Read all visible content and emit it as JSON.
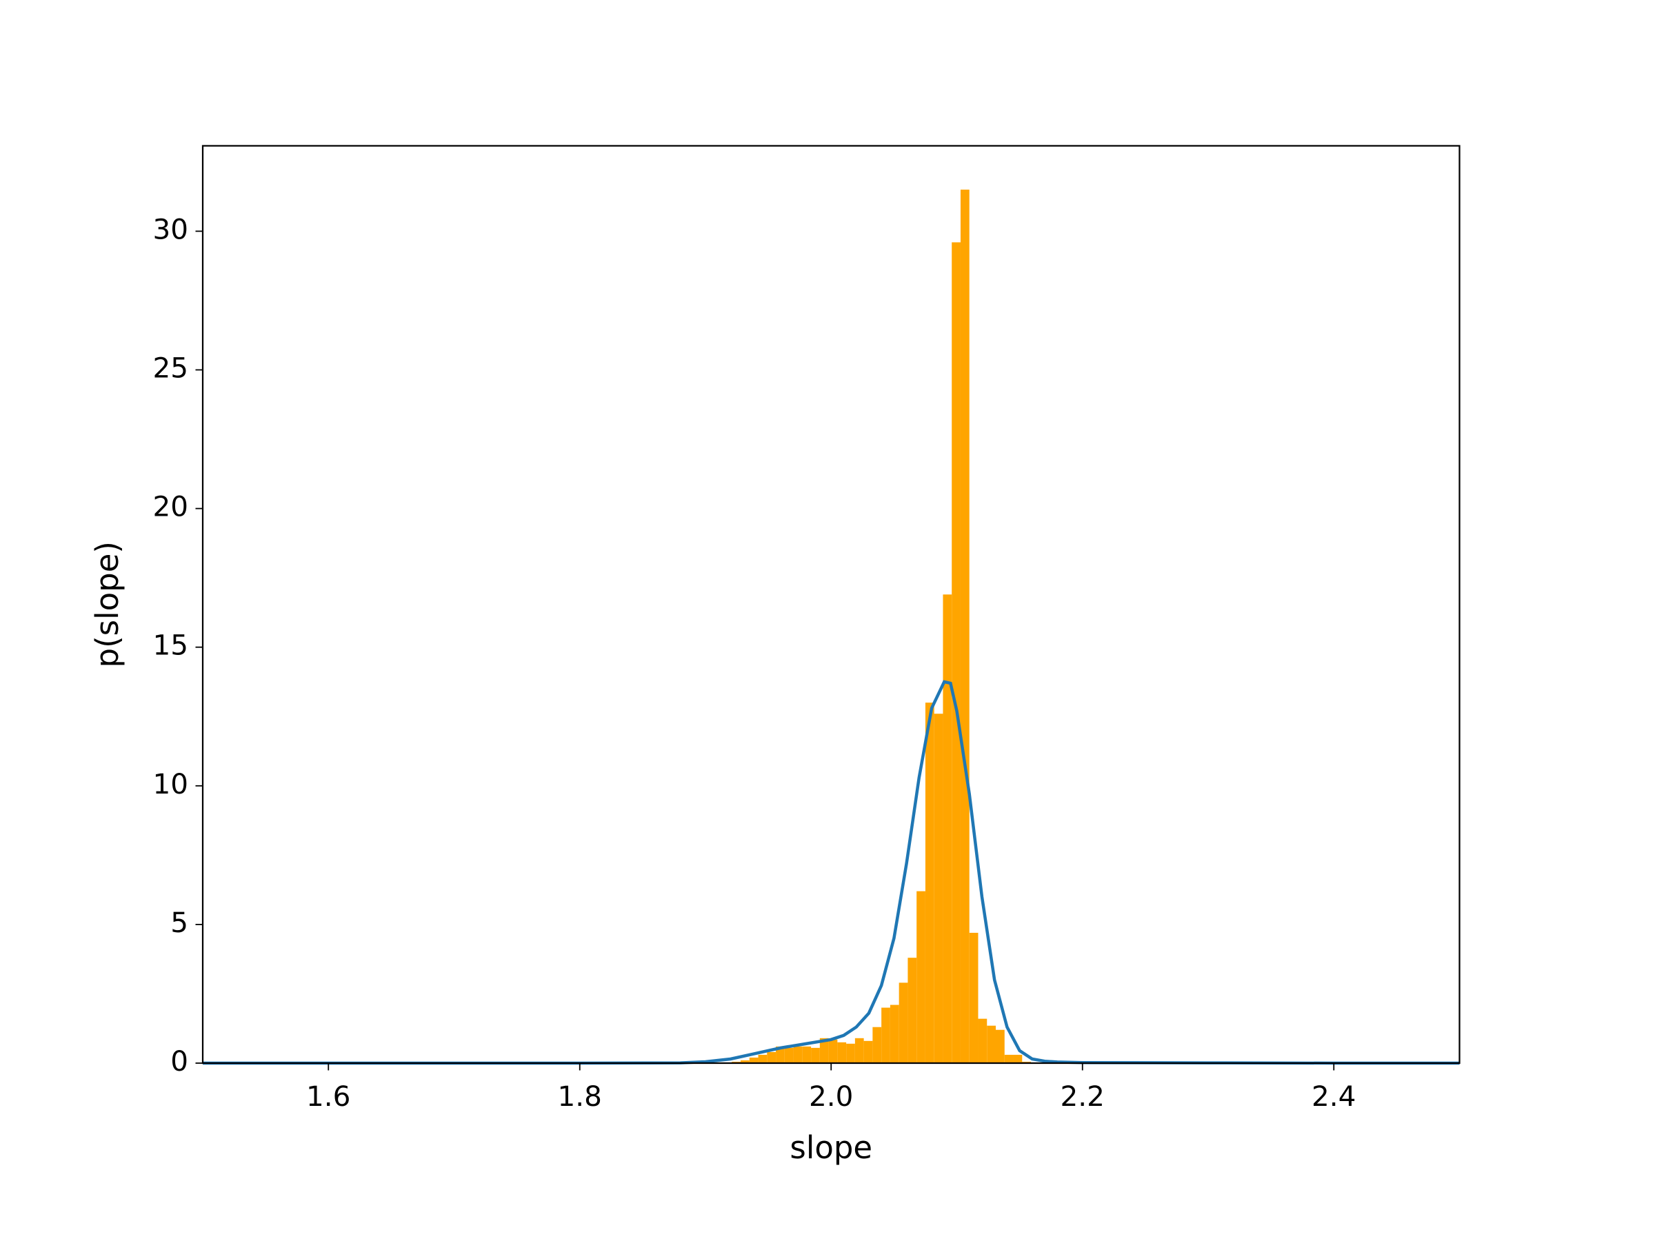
{
  "chart_data": {
    "type": "histogram",
    "x_label": "slope",
    "y_label": "p(slope)",
    "xlim": [
      1.5,
      2.5
    ],
    "ylim": [
      0,
      33.08
    ],
    "xticks": [
      1.6,
      1.8,
      {
        "value": 2.0,
        "label": "2.0"
      },
      2.2,
      2.4
    ],
    "yticks": [
      0,
      5,
      10,
      15,
      20,
      25,
      30
    ],
    "color": "#ffa500",
    "bins": [
      1.921,
      1.928,
      1.935,
      1.942,
      1.949,
      1.956,
      1.963,
      1.97,
      1.977,
      1.984,
      1.991,
      1.998,
      2.005,
      2.012,
      2.019,
      2.026,
      2.033,
      2.04,
      2.047,
      2.054,
      2.061,
      2.068,
      2.075,
      2.082,
      2.089,
      2.096,
      2.103,
      2.11,
      2.117,
      2.124,
      2.131,
      2.138,
      2.145,
      2.152,
      2.159,
      2.166
    ],
    "counts": [
      0.05,
      0.1,
      0.2,
      0.3,
      0.4,
      0.6,
      0.55,
      0.6,
      0.6,
      0.55,
      0.9,
      0.85,
      0.75,
      0.7,
      0.9,
      0.8,
      1.3,
      2.0,
      2.1,
      2.9,
      3.8,
      6.2,
      13.0,
      12.6,
      16.9,
      29.6,
      31.5,
      4.7,
      1.6,
      1.35,
      1.2,
      0.3,
      0.3,
      0.05,
      0.02
    ],
    "density_line": {
      "color": "#1f77b4",
      "x": [
        1.5,
        1.6,
        1.7,
        1.8,
        1.88,
        1.9,
        1.92,
        1.94,
        1.96,
        1.98,
        2.0,
        2.01,
        2.02,
        2.03,
        2.04,
        2.05,
        2.06,
        2.07,
        2.08,
        2.09,
        2.095,
        2.1,
        2.11,
        2.12,
        2.13,
        2.14,
        2.15,
        2.16,
        2.17,
        2.18,
        2.2,
        2.3,
        2.4,
        2.5
      ],
      "y": [
        0,
        0,
        0,
        0,
        0.01,
        0.05,
        0.15,
        0.35,
        0.55,
        0.7,
        0.85,
        1.0,
        1.3,
        1.8,
        2.8,
        4.5,
        7.2,
        10.3,
        12.8,
        13.75,
        13.7,
        12.7,
        9.7,
        6.0,
        3.0,
        1.3,
        0.45,
        0.15,
        0.07,
        0.04,
        0.02,
        0.01,
        0,
        0
      ]
    }
  }
}
